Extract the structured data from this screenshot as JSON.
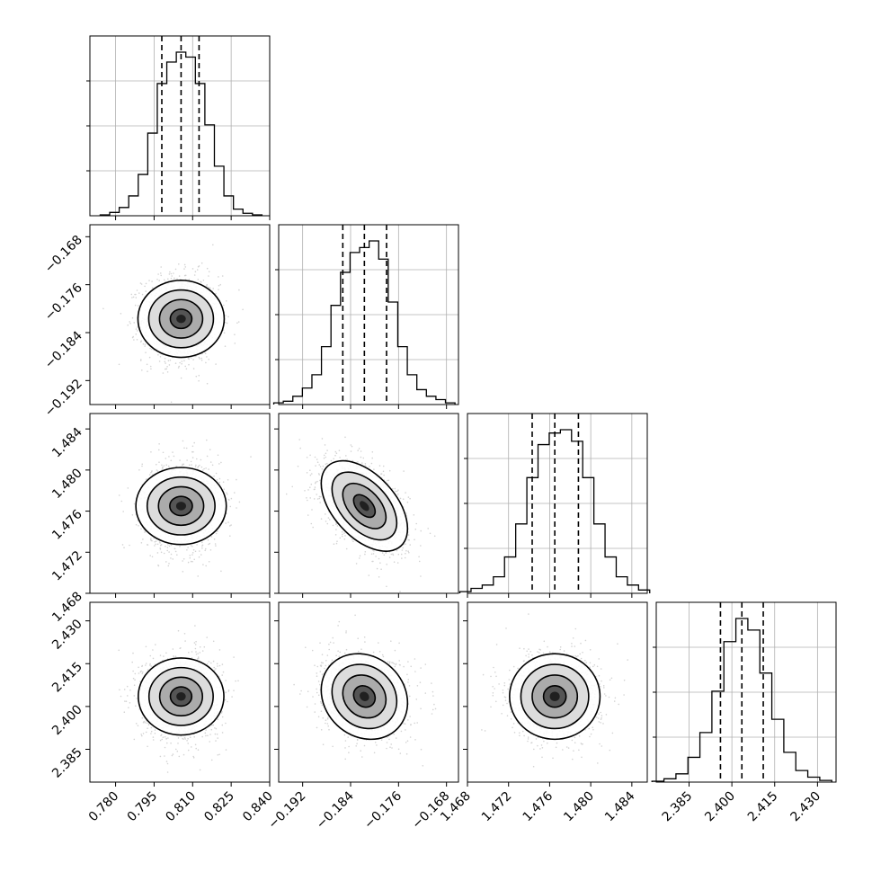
{
  "chart_data": {
    "type": "corner",
    "title": "",
    "grid": true,
    "parameters": [
      {
        "name": "",
        "range": [
          0.77,
          0.84
        ],
        "ticks": [
          "0.780",
          "0.795",
          "0.810",
          "0.825",
          "0.840"
        ],
        "tick_values": [
          0.78,
          0.795,
          0.81,
          0.825,
          0.84
        ],
        "quantiles": [
          0.798,
          0.8055,
          0.8125
        ],
        "center": 0.8055,
        "sigma": 0.0075,
        "hist_counts": [
          0.005,
          0.02,
          0.05,
          0.12,
          0.25,
          0.5,
          0.8,
          0.93,
          0.99,
          0.96,
          0.8,
          0.55,
          0.3,
          0.12,
          0.04,
          0.015,
          0.005
        ]
      },
      {
        "name": "",
        "range": [
          -0.196,
          -0.166
        ],
        "ticks": [
          "-0.192",
          "-0.184",
          "-0.176",
          "-0.168"
        ],
        "tick_values": [
          -0.192,
          -0.184,
          -0.176,
          -0.168
        ],
        "quantiles": [
          -0.1853,
          -0.1817,
          -0.178
        ],
        "center": -0.1817,
        "sigma": 0.0036,
        "hist_counts": [
          0.01,
          0.02,
          0.05,
          0.1,
          0.18,
          0.35,
          0.6,
          0.8,
          0.92,
          0.95,
          0.99,
          0.88,
          0.62,
          0.35,
          0.18,
          0.09,
          0.05,
          0.03,
          0.01
        ]
      },
      {
        "name": "",
        "range": [
          1.468,
          1.4855
        ],
        "ticks": [
          "1.468",
          "1.472",
          "1.476",
          "1.480",
          "1.484"
        ],
        "tick_values": [
          1.468,
          1.472,
          1.476,
          1.48,
          1.484
        ],
        "quantiles": [
          1.4743,
          1.4765,
          1.4788
        ],
        "center": 1.4765,
        "sigma": 0.0022,
        "hist_counts": [
          0.01,
          0.03,
          0.05,
          0.1,
          0.22,
          0.42,
          0.7,
          0.9,
          0.97,
          0.99,
          0.92,
          0.7,
          0.42,
          0.22,
          0.1,
          0.05,
          0.02
        ]
      },
      {
        "name": "",
        "range": [
          2.3735,
          2.4365
        ],
        "ticks": [
          "2.385",
          "2.400",
          "2.415",
          "2.430"
        ],
        "tick_values": [
          2.385,
          2.4,
          2.415,
          2.43
        ],
        "quantiles": [
          2.396,
          2.4035,
          2.411
        ],
        "center": 2.4035,
        "sigma": 0.0075,
        "hist_counts": [
          0.005,
          0.02,
          0.05,
          0.15,
          0.3,
          0.55,
          0.85,
          0.99,
          0.92,
          0.66,
          0.38,
          0.18,
          0.07,
          0.03,
          0.01
        ]
      }
    ],
    "correlations": [
      {
        "row": 1,
        "col": 0,
        "rho": 0.0
      },
      {
        "row": 2,
        "col": 0,
        "rho": 0.0
      },
      {
        "row": 2,
        "col": 1,
        "rho": -0.5
      },
      {
        "row": 3,
        "col": 0,
        "rho": 0.0
      },
      {
        "row": 3,
        "col": 1,
        "rho": -0.15
      },
      {
        "row": 3,
        "col": 2,
        "rho": 0.0
      }
    ],
    "contour_levels_sigma": [
      0.5,
      1.0,
      1.5,
      2.0
    ],
    "colors": {
      "line": "#000000",
      "grid": "#b0b0b0",
      "scatter": "#808080",
      "density_dark": "#303030"
    }
  }
}
